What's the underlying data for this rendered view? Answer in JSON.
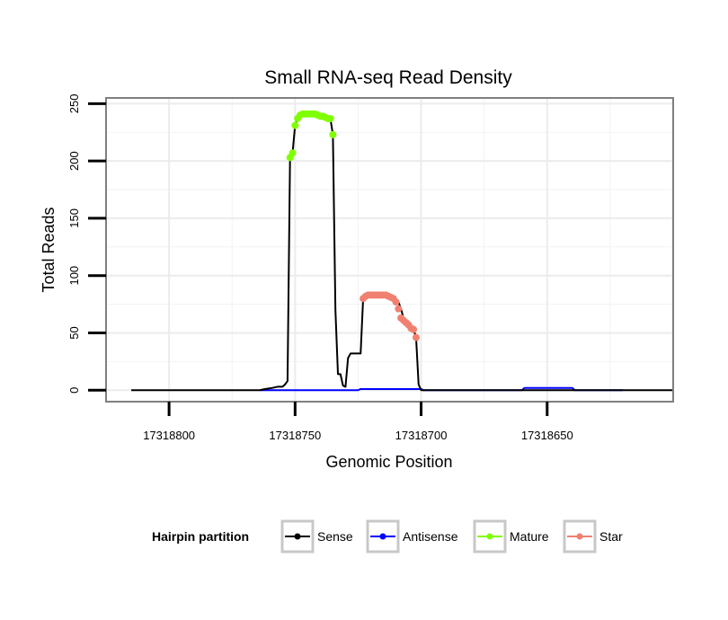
{
  "chart_data": {
    "type": "line",
    "title": "Small RNA-seq Read Density",
    "xlabel": "Genomic Position",
    "ylabel": "Total Reads",
    "xlim": [
      17318825,
      17318600
    ],
    "ylim": [
      -10,
      255
    ],
    "x_reversed": true,
    "x_ticks": [
      17318800,
      17318750,
      17318700,
      17318650
    ],
    "x_tick_labels": [
      "17318800",
      "17318750",
      "17318700",
      "17318650"
    ],
    "y_ticks": [
      0,
      50,
      100,
      150,
      200,
      250
    ],
    "y_tick_labels": [
      "0",
      "50",
      "100",
      "150",
      "200",
      "250"
    ],
    "grid": true,
    "legend": {
      "title": "Hairpin partition",
      "position": "bottom",
      "entries": [
        {
          "name": "Sense",
          "color": "#000000"
        },
        {
          "name": "Antisense",
          "color": "#0000ff"
        },
        {
          "name": "Mature",
          "color": "#7fff00"
        },
        {
          "name": "Star",
          "color": "#f08070"
        }
      ]
    },
    "series": [
      {
        "name": "Sense",
        "color": "#000000",
        "style": "line",
        "x": [
          17318815,
          17318764,
          17318762,
          17318759,
          17318757,
          17318755,
          17318754,
          17318753,
          17318752,
          17318751,
          17318750,
          17318749,
          17318748,
          17318746,
          17318744,
          17318742,
          17318740,
          17318738,
          17318737,
          17318736,
          17318735,
          17318734,
          17318733,
          17318732,
          17318731,
          17318730,
          17318729,
          17318728,
          17318727,
          17318726,
          17318725,
          17318724,
          17318723,
          17318722,
          17318721,
          17318720,
          17318718,
          17318716,
          17318714,
          17318712,
          17318710,
          17318709,
          17318708,
          17318707,
          17318706,
          17318705,
          17318704,
          17318703,
          17318702,
          17318701,
          17318700,
          17318699,
          17318698,
          17318697,
          17318696,
          17318694,
          17318640,
          17318600
        ],
        "values": [
          0,
          0,
          1,
          2,
          3,
          3,
          5,
          8,
          203,
          207,
          231,
          237,
          240,
          241,
          241,
          241,
          240,
          239,
          238,
          237,
          223,
          70,
          14,
          14,
          4,
          3,
          28,
          32,
          32,
          32,
          32,
          32,
          80,
          82,
          83,
          83,
          83,
          83,
          83,
          82,
          80,
          77,
          71,
          63,
          59,
          57,
          54,
          53,
          46,
          5,
          0,
          0,
          0,
          0,
          0,
          0,
          0,
          0
        ]
      },
      {
        "name": "Antisense",
        "color": "#0000ff",
        "style": "line",
        "x": [
          17318764,
          17318725,
          17318724,
          17318700,
          17318699,
          17318660,
          17318659,
          17318640,
          17318639,
          17318620
        ],
        "values": [
          0,
          0,
          1,
          1,
          0,
          0,
          2,
          2,
          0,
          0
        ]
      },
      {
        "name": "Mature",
        "color": "#7fff00",
        "style": "points",
        "x": [
          17318752,
          17318751,
          17318750,
          17318749,
          17318748,
          17318747,
          17318746,
          17318745,
          17318744,
          17318743,
          17318742,
          17318741,
          17318740,
          17318739,
          17318738,
          17318737,
          17318736,
          17318735
        ],
        "values": [
          203,
          207,
          231,
          237,
          240,
          241,
          241,
          241,
          241,
          241,
          241,
          240,
          239,
          239,
          238,
          237,
          237,
          223
        ]
      },
      {
        "name": "Star",
        "color": "#f08070",
        "style": "points",
        "x": [
          17318723,
          17318722,
          17318721,
          17318720,
          17318719,
          17318718,
          17318717,
          17318716,
          17318715,
          17318714,
          17318713,
          17318712,
          17318711,
          17318710,
          17318709,
          17318708,
          17318707,
          17318706,
          17318705,
          17318704,
          17318703,
          17318702
        ],
        "values": [
          80,
          82,
          83,
          83,
          83,
          83,
          83,
          83,
          83,
          83,
          82,
          81,
          80,
          77,
          71,
          63,
          61,
          59,
          57,
          54,
          53,
          46
        ]
      }
    ]
  }
}
